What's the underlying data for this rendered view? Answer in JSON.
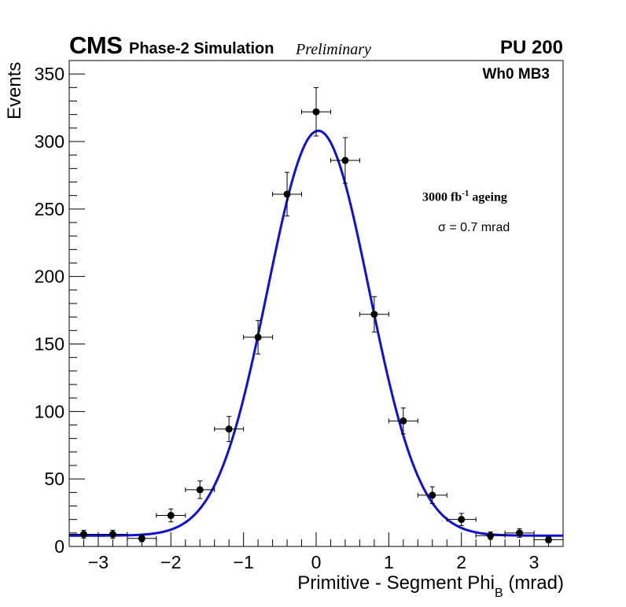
{
  "header": {
    "experiment": "CMS",
    "subtitle": "Phase-2 Simulation",
    "status": "Preliminary",
    "pileup": "PU 200"
  },
  "annotations": {
    "station": "Wh0 MB3",
    "ageing_prefix": "3000 fb",
    "ageing_exponent": "-1",
    "ageing_suffix": " ageing",
    "sigma": "σ = 0.7 mrad"
  },
  "axes": {
    "xlabel_main": "Primitive - Segment Phi",
    "xlabel_sub": "B",
    "xlabel_unit": " (mrad)",
    "ylabel": "Events"
  },
  "colors": {
    "fit": "#1010d8",
    "points": "#000000"
  },
  "chart_data": {
    "type": "scatter",
    "title": "",
    "xlabel": "Primitive - Segment Phi_B (mrad)",
    "ylabel": "Events",
    "xlim": [
      -3.4,
      3.4
    ],
    "ylim": [
      0,
      360
    ],
    "x_ticks": [
      -3,
      -2,
      -1,
      0,
      1,
      2,
      3
    ],
    "x_tick_labels": [
      "−3",
      "−2",
      "−1",
      "0",
      "1",
      "2",
      "3"
    ],
    "y_ticks": [
      0,
      50,
      100,
      150,
      200,
      250,
      300,
      350
    ],
    "y_tick_labels": [
      "0",
      "50",
      "100",
      "150",
      "200",
      "250",
      "300",
      "350"
    ],
    "bin_half_width": 0.2,
    "series": [
      {
        "name": "Simulation",
        "x": [
          -3.2,
          -2.8,
          -2.4,
          -2.0,
          -1.6,
          -1.2,
          -0.8,
          -0.4,
          0.0,
          0.4,
          0.8,
          1.2,
          1.6,
          2.0,
          2.4,
          2.8,
          3.2
        ],
        "y": [
          9,
          9,
          6,
          23,
          42,
          87,
          155,
          261,
          322,
          286,
          172,
          93,
          38,
          20,
          8,
          10,
          5
        ],
        "yerr": [
          3,
          3,
          2.5,
          4.8,
          6.5,
          9.3,
          12.4,
          16.2,
          17.9,
          16.9,
          13.1,
          9.6,
          6.2,
          4.5,
          2.8,
          3.2,
          2.2
        ]
      },
      {
        "name": "Gaussian fit",
        "function": "gaussian_plus_constant",
        "amplitude": 300,
        "mean": 0.03,
        "sigma": 0.7,
        "constant": 8
      }
    ]
  }
}
